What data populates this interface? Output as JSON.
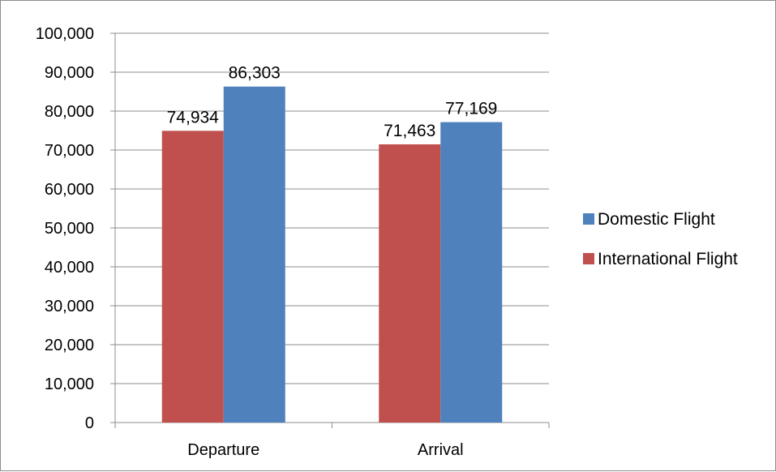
{
  "chart_data": {
    "type": "bar",
    "categories": [
      "Departure",
      "Arrival"
    ],
    "series": [
      {
        "name": "International Flight",
        "values": [
          74934,
          71463
        ],
        "color": "#c0504d"
      },
      {
        "name": "Domestic Flight",
        "values": [
          86303,
          77169
        ],
        "color": "#4f81bd"
      }
    ],
    "ylim": [
      0,
      100000
    ],
    "ytick_step": 10000,
    "yticks": [
      "0",
      "10,000",
      "20,000",
      "30,000",
      "40,000",
      "50,000",
      "60,000",
      "70,000",
      "80,000",
      "90,000",
      "100,000"
    ],
    "data_labels": [
      [
        "74,934",
        "71,463"
      ],
      [
        "86,303",
        "77,169"
      ]
    ],
    "legend": {
      "position": "right",
      "entries": [
        {
          "label": "Domestic Flight",
          "color": "#4f81bd"
        },
        {
          "label": "International Flight",
          "color": "#c0504d"
        }
      ]
    },
    "grid": true,
    "title": "",
    "xlabel": "",
    "ylabel": ""
  }
}
